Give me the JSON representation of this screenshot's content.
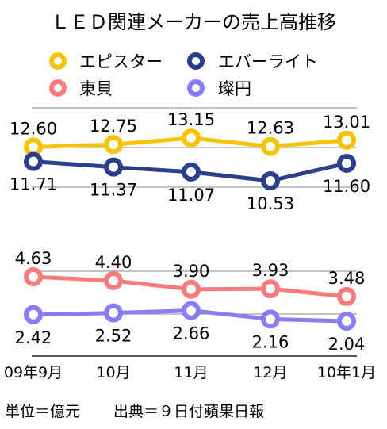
{
  "chart_data": {
    "type": "line",
    "title": "ＬＥＤ関連メーカーの売上高推移",
    "categories": [
      "09年9月",
      "10月",
      "11月",
      "12月",
      "10年1月"
    ],
    "series": [
      {
        "name": "エピスター",
        "color": "#f5c400",
        "values": [
          12.6,
          12.75,
          13.15,
          12.63,
          13.01
        ]
      },
      {
        "name": "エバーライト",
        "color": "#2b3f8c",
        "values": [
          11.71,
          11.37,
          11.07,
          10.53,
          11.6
        ]
      },
      {
        "name": "東貝",
        "color": "#f87c7c",
        "values": [
          4.63,
          4.4,
          3.9,
          3.93,
          3.48
        ]
      },
      {
        "name": "璨円",
        "color": "#8a7cf5",
        "values": [
          2.42,
          2.52,
          2.66,
          2.16,
          2.04
        ]
      }
    ],
    "value_labels": {
      "エピスター": [
        "12.60",
        "12.75",
        "13.15",
        "12.63",
        "13.01"
      ],
      "エバーライト": [
        "11.71",
        "11.37",
        "11.07",
        "10.53",
        "11.60"
      ],
      "東貝": [
        "4.63",
        "4.40",
        "3.90",
        "3.93",
        "3.48"
      ],
      "璨円": [
        "2.42",
        "2.52",
        "2.66",
        "2.16",
        "2.04"
      ]
    },
    "unit_note": "単位＝億元",
    "source_note": "出典＝９日付蘋果日報"
  }
}
